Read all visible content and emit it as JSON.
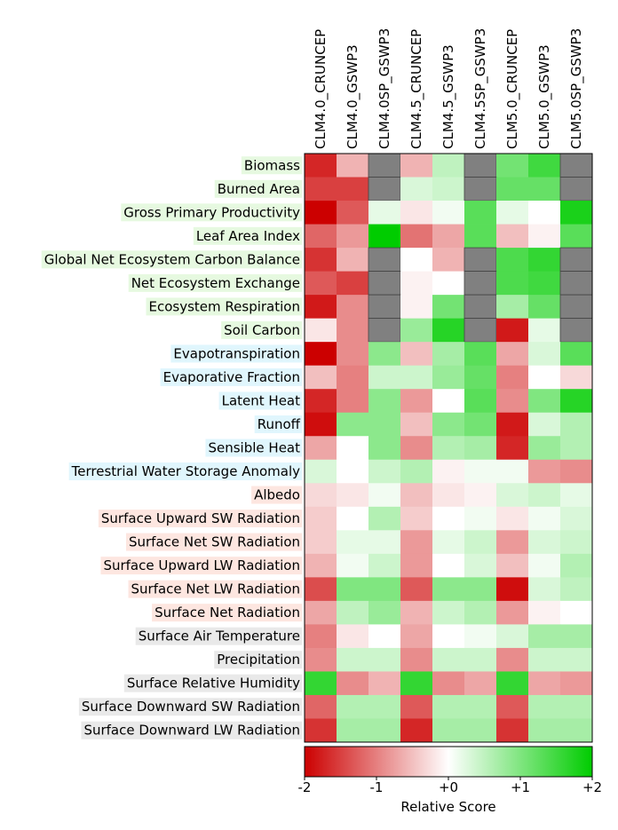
{
  "chart_data": {
    "type": "heatmap",
    "title": "",
    "columns": [
      "CLM4.0_CRUNCEP",
      "CLM4.0_GSWP3",
      "CLM4.0SP_GSWP3",
      "CLM4.5_CRUNCEP",
      "CLM4.5_GSWP3",
      "CLM4.5SP_GSWP3",
      "CLM5.0_CRUNCEP",
      "CLM5.0_GSWP3",
      "CLM5.0SP_GSWP3"
    ],
    "rows": [
      {
        "label": "Biomass",
        "group": "ecosystem",
        "values": [
          -1.7,
          -0.6,
          null,
          -0.6,
          0.5,
          null,
          1.1,
          1.5,
          null
        ]
      },
      {
        "label": "Burned Area",
        "group": "ecosystem",
        "values": [
          -1.5,
          -1.5,
          null,
          0.3,
          0.4,
          null,
          1.2,
          1.2,
          null
        ]
      },
      {
        "label": "Gross Primary Productivity",
        "group": "ecosystem",
        "values": [
          -2.0,
          -1.3,
          0.2,
          -0.2,
          0.1,
          1.3,
          0.2,
          0.0,
          1.8
        ]
      },
      {
        "label": "Leaf Area Index",
        "group": "ecosystem",
        "values": [
          -1.2,
          -0.8,
          2.0,
          -1.1,
          -0.7,
          1.3,
          -0.5,
          -0.1,
          1.3
        ]
      },
      {
        "label": "Global Net Ecosystem Carbon Balance",
        "group": "ecosystem",
        "values": [
          -1.6,
          -0.6,
          null,
          0.0,
          -0.6,
          null,
          1.4,
          1.6,
          null
        ]
      },
      {
        "label": "Net Ecosystem Exchange",
        "group": "ecosystem",
        "values": [
          -1.3,
          -1.5,
          null,
          -0.1,
          0.0,
          null,
          1.4,
          1.5,
          null
        ]
      },
      {
        "label": "Ecosystem Respiration",
        "group": "ecosystem",
        "values": [
          -1.8,
          -0.9,
          null,
          -0.1,
          1.1,
          null,
          0.7,
          1.2,
          null
        ]
      },
      {
        "label": "Soil Carbon",
        "group": "ecosystem",
        "values": [
          -0.2,
          -0.9,
          null,
          0.8,
          1.7,
          null,
          -1.8,
          0.2,
          null
        ]
      },
      {
        "label": "Evapotranspiration",
        "group": "water",
        "values": [
          -2.0,
          -0.9,
          0.9,
          -0.5,
          0.7,
          1.3,
          -0.7,
          0.3,
          1.3
        ]
      },
      {
        "label": "Evaporative Fraction",
        "group": "water",
        "values": [
          -0.5,
          -1.0,
          0.4,
          0.4,
          0.8,
          1.2,
          -1.0,
          0.0,
          -0.3
        ]
      },
      {
        "label": "Latent Heat",
        "group": "water",
        "values": [
          -1.7,
          -1.0,
          0.9,
          -0.8,
          0.0,
          1.3,
          -0.9,
          1.0,
          1.7
        ]
      },
      {
        "label": "Runoff",
        "group": "water",
        "values": [
          -1.9,
          0.9,
          0.9,
          -0.5,
          0.9,
          1.1,
          -1.8,
          0.3,
          0.6
        ]
      },
      {
        "label": "Sensible Heat",
        "group": "water",
        "values": [
          -0.7,
          0.0,
          0.9,
          -0.9,
          0.6,
          0.7,
          -1.7,
          0.8,
          0.6
        ]
      },
      {
        "label": "Terrestrial Water Storage Anomaly",
        "group": "water",
        "values": [
          0.3,
          0.0,
          0.4,
          0.6,
          -0.1,
          0.1,
          0.1,
          -0.8,
          -0.9
        ]
      },
      {
        "label": "Albedo",
        "group": "radiation",
        "values": [
          -0.3,
          -0.2,
          0.1,
          -0.5,
          -0.2,
          -0.1,
          0.3,
          0.4,
          0.2
        ]
      },
      {
        "label": "Surface Upward SW Radiation",
        "group": "radiation",
        "values": [
          -0.4,
          0.0,
          0.6,
          -0.4,
          0.0,
          0.1,
          -0.2,
          0.1,
          0.3
        ]
      },
      {
        "label": "Surface Net SW Radiation",
        "group": "radiation",
        "values": [
          -0.4,
          0.2,
          0.2,
          -0.8,
          0.2,
          0.4,
          -0.8,
          0.3,
          0.4
        ]
      },
      {
        "label": "Surface Upward LW Radiation",
        "group": "radiation",
        "values": [
          -0.6,
          0.1,
          0.4,
          -0.8,
          0.0,
          0.3,
          -0.5,
          0.1,
          0.6
        ]
      },
      {
        "label": "Surface Net LW Radiation",
        "group": "radiation",
        "values": [
          -1.4,
          1.0,
          1.0,
          -1.3,
          0.9,
          0.9,
          -1.9,
          0.3,
          0.5
        ]
      },
      {
        "label": "Surface Net Radiation",
        "group": "radiation",
        "values": [
          -0.7,
          0.5,
          0.8,
          -0.6,
          0.4,
          0.6,
          -0.8,
          -0.1,
          0.0
        ]
      },
      {
        "label": "Surface Air Temperature",
        "group": "forcing",
        "values": [
          -1.0,
          -0.2,
          0.0,
          -0.7,
          0.0,
          0.1,
          0.3,
          0.7,
          0.7
        ]
      },
      {
        "label": "Precipitation",
        "group": "forcing",
        "values": [
          -0.9,
          0.4,
          0.4,
          -0.9,
          0.4,
          0.4,
          -0.9,
          0.4,
          0.4
        ]
      },
      {
        "label": "Surface Relative Humidity",
        "group": "forcing",
        "values": [
          1.6,
          -0.9,
          -0.6,
          1.6,
          -0.9,
          -0.7,
          1.6,
          -0.7,
          -0.8
        ]
      },
      {
        "label": "Surface Downward SW Radiation",
        "group": "forcing",
        "values": [
          -1.2,
          0.6,
          0.6,
          -1.3,
          0.6,
          0.6,
          -1.3,
          0.6,
          0.6
        ]
      },
      {
        "label": "Surface Downward LW Radiation",
        "group": "forcing",
        "values": [
          -1.6,
          0.7,
          0.7,
          -1.7,
          0.7,
          0.7,
          -1.6,
          0.7,
          0.7
        ]
      }
    ],
    "group_colors": {
      "ecosystem": "#e6f9e0",
      "water": "#e0f6fd",
      "radiation": "#fde6e0",
      "forcing": "#e9e9e9"
    },
    "missing_color": "#808080",
    "colorbar": {
      "label": "Relative Score",
      "range": [
        -2,
        2
      ],
      "ticks": [
        -2,
        -1,
        0,
        1,
        2
      ],
      "tick_labels": [
        "-2",
        "-1",
        "+0",
        "+1",
        "+2"
      ],
      "color_min": "#cc0000",
      "color_mid": "#ffffff",
      "color_max": "#00cc00"
    }
  }
}
